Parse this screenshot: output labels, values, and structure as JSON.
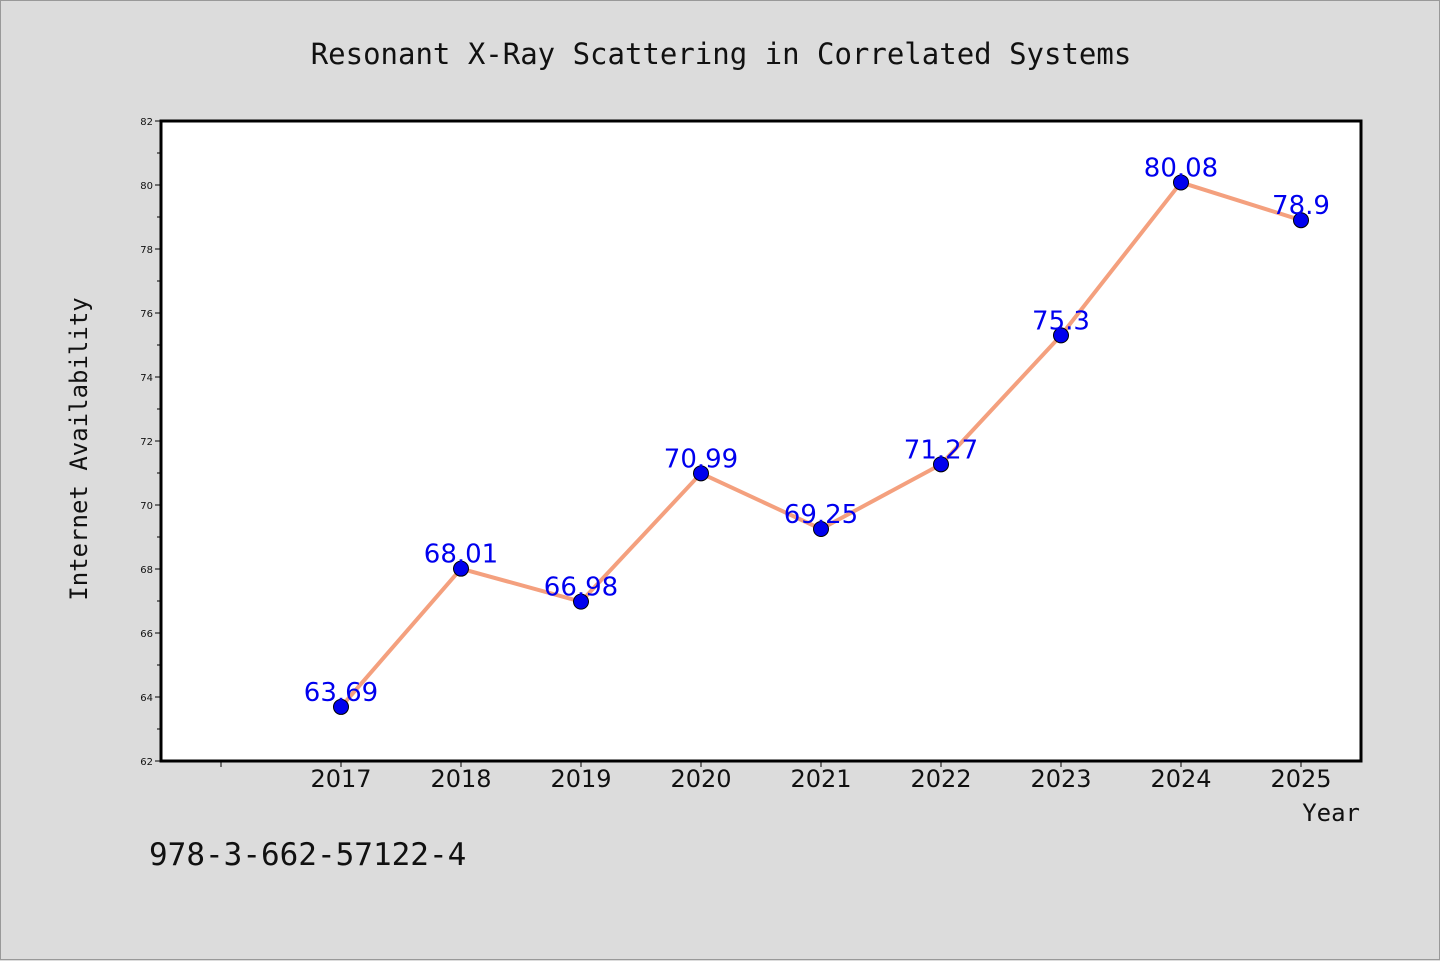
{
  "chart_data": {
    "type": "line",
    "title": "Resonant X-Ray Scattering in Correlated Systems",
    "xlabel": "Year",
    "ylabel": "Internet Availability",
    "categories": [
      "2017",
      "2018",
      "2019",
      "2020",
      "2021",
      "2022",
      "2023",
      "2024",
      "2025"
    ],
    "values": [
      63.69,
      68.01,
      66.98,
      70.99,
      69.25,
      71.27,
      75.3,
      80.08,
      78.9
    ],
    "value_labels": [
      "63.69",
      "68.01",
      "66.98",
      "70.99",
      "69.25",
      "71.27",
      "75.3",
      "80.08",
      "78.9"
    ],
    "yticks": [
      "62",
      "64",
      "66",
      "68",
      "70",
      "72",
      "74",
      "76",
      "78",
      "80",
      "82"
    ],
    "ylim": [
      62,
      82
    ],
    "grid": false,
    "line_color": "#f4a07e",
    "marker_color": "#0000ee",
    "label_color": "#0000ee"
  },
  "footer_text": "978-3-662-57122-4"
}
